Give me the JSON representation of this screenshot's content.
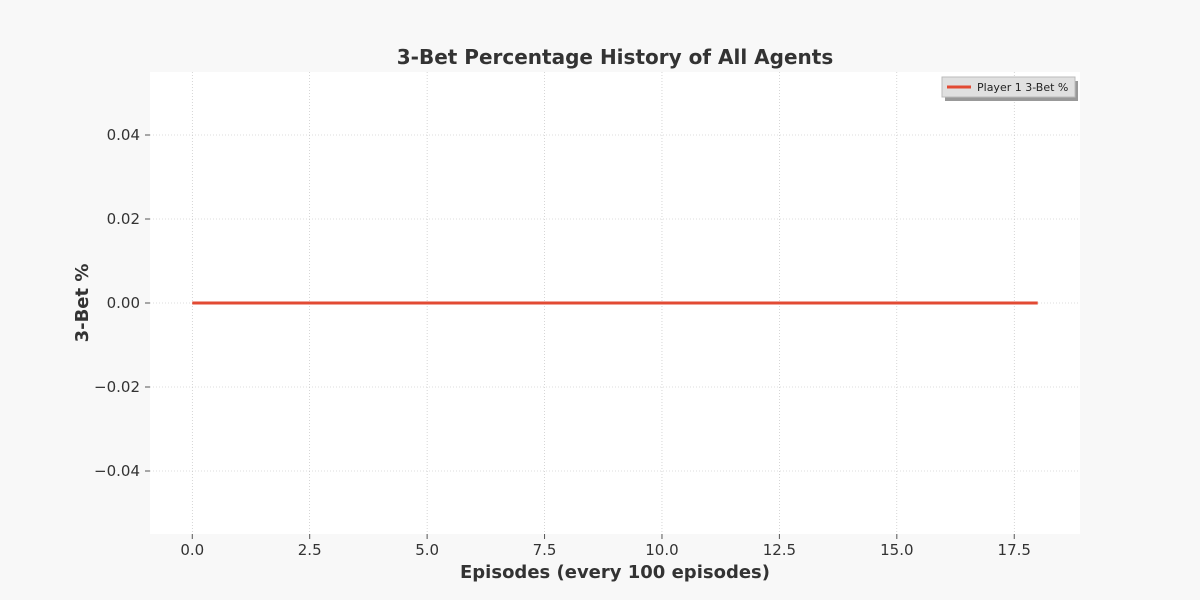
{
  "chart_data": {
    "type": "line",
    "title": "3-Bet Percentage History of All Agents",
    "xlabel": "Episodes (every 100 episodes)",
    "ylabel": "3-Bet %",
    "xlim": [
      -0.9,
      18.9
    ],
    "ylim": [
      -0.055,
      0.055
    ],
    "xticks": [
      0.0,
      2.5,
      5.0,
      7.5,
      10.0,
      12.5,
      15.0,
      17.5
    ],
    "xtick_labels": [
      "0.0",
      "2.5",
      "5.0",
      "7.5",
      "10.0",
      "12.5",
      "15.0",
      "17.5"
    ],
    "yticks": [
      0.04,
      0.02,
      0.0,
      -0.02,
      -0.04
    ],
    "ytick_labels": [
      "0.04",
      "0.02",
      "0.00",
      "−0.02",
      "−0.04"
    ],
    "grid": true,
    "legend_position": "top-right",
    "x": [
      0,
      1,
      2,
      3,
      4,
      5,
      6,
      7,
      8,
      9,
      10,
      11,
      12,
      13,
      14,
      15,
      16,
      17,
      18
    ],
    "series": [
      {
        "name": "Player 1 3-Bet %",
        "color": "#e24a33",
        "values": [
          0,
          0,
          0,
          0,
          0,
          0,
          0,
          0,
          0,
          0,
          0,
          0,
          0,
          0,
          0,
          0,
          0,
          0,
          0
        ]
      }
    ],
    "colors": {
      "plot_background": "#ffffff",
      "figure_background": "#f8f8f8",
      "grid": "#bbbbbb",
      "text": "#333333"
    }
  }
}
